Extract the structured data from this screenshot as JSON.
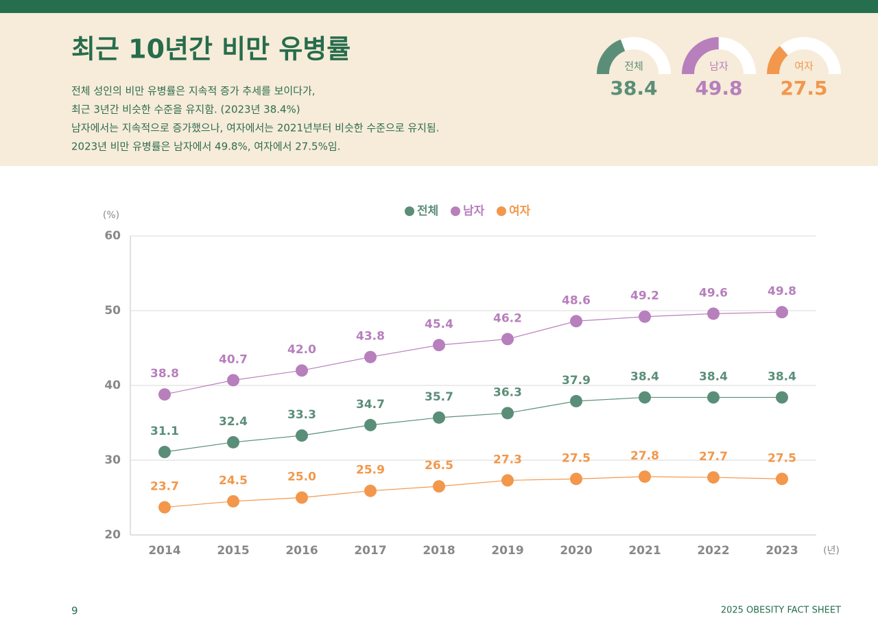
{
  "header": {
    "title": "최근 10년간 비만 유병률",
    "description": [
      "전체 성인의 비만 유병률은 지속적 증가 추세를 보이다가,",
      "최근 3년간 비슷한 수준을 유지함. (2023년 38.4%)",
      "남자에서는 지속적으로 증가했으나, 여자에서는 2021년부터 비슷한 수준으로 유지됨.",
      "2023년 비만 유병률은 남자에서 49.8%, 여자에서 27.5%임."
    ]
  },
  "chart_data": [
    {
      "type": "line",
      "y_label": "(%)",
      "x_label": "(년)",
      "categories": [
        "2014",
        "2015",
        "2016",
        "2017",
        "2018",
        "2019",
        "2020",
        "2021",
        "2022",
        "2023"
      ],
      "ylim": [
        20,
        60
      ],
      "yticks": [
        20,
        30,
        40,
        50,
        60
      ],
      "grid": true,
      "legend": "top",
      "series": [
        {
          "name": "전체",
          "color": "#5b8e78",
          "values": [
            31.1,
            32.4,
            33.3,
            34.7,
            35.7,
            36.3,
            37.9,
            38.4,
            38.4,
            38.4
          ],
          "value_labels": [
            "31.1",
            "32.4",
            "33.3",
            "34.7",
            "35.7",
            "36.3",
            "37.9",
            "38.4",
            "38.4",
            "38.4"
          ]
        },
        {
          "name": "남자",
          "color": "#b77fbc",
          "values": [
            38.8,
            40.7,
            42.0,
            43.8,
            45.4,
            46.2,
            48.6,
            49.2,
            49.6,
            49.8
          ],
          "value_labels": [
            "38.8",
            "40.7",
            "42.0",
            "43.8",
            "45.4",
            "46.2",
            "48.6",
            "49.2",
            "49.6",
            "49.8"
          ]
        },
        {
          "name": "여자",
          "color": "#f2974b",
          "values": [
            23.7,
            24.5,
            25.0,
            25.9,
            26.5,
            27.3,
            27.5,
            27.8,
            27.7,
            27.5
          ],
          "value_labels": [
            "23.7",
            "24.5",
            "25.0",
            "25.9",
            "26.5",
            "27.3",
            "27.5",
            "27.8",
            "27.7",
            "27.5"
          ]
        }
      ]
    },
    {
      "type": "gauge",
      "categories": [
        "전체",
        "남자",
        "여자"
      ],
      "values": [
        38.4,
        49.8,
        27.5
      ],
      "colors": [
        "#5b8e78",
        "#b77fbc",
        "#f2974b"
      ],
      "ylim": [
        0,
        100
      ]
    }
  ],
  "footer": {
    "page": 9,
    "text": "2025 OBESITY FACT SHEET"
  }
}
